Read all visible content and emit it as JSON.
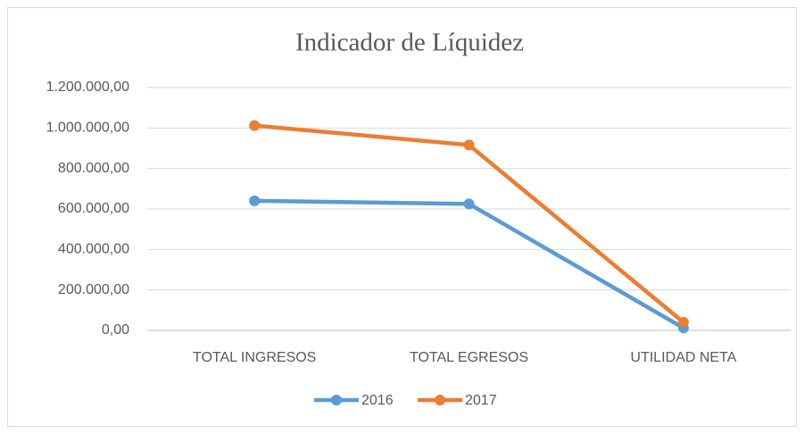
{
  "chart_data": {
    "type": "line",
    "title": "Indicador de Líquidez",
    "categories": [
      "TOTAL INGRESOS",
      "TOTAL EGRESOS",
      "UTILIDAD NETA"
    ],
    "series": [
      {
        "name": "2016",
        "color": "#5b9bd5",
        "values": [
          640000,
          625000,
          12000
        ]
      },
      {
        "name": "2017",
        "color": "#ed7d31",
        "values": [
          1012000,
          916000,
          40000
        ]
      }
    ],
    "ylim": [
      0,
      1200000
    ],
    "yticks": [
      {
        "value": 0,
        "label": "0,00"
      },
      {
        "value": 200000,
        "label": "200.000,00"
      },
      {
        "value": 400000,
        "label": "400.000,00"
      },
      {
        "value": 600000,
        "label": "600.000,00"
      },
      {
        "value": 800000,
        "label": "800.000,00"
      },
      {
        "value": 1000000,
        "label": "1.000.000,00"
      },
      {
        "value": 1200000,
        "label": "1.200.000,00"
      }
    ],
    "grid": true,
    "legend": "bottom"
  }
}
